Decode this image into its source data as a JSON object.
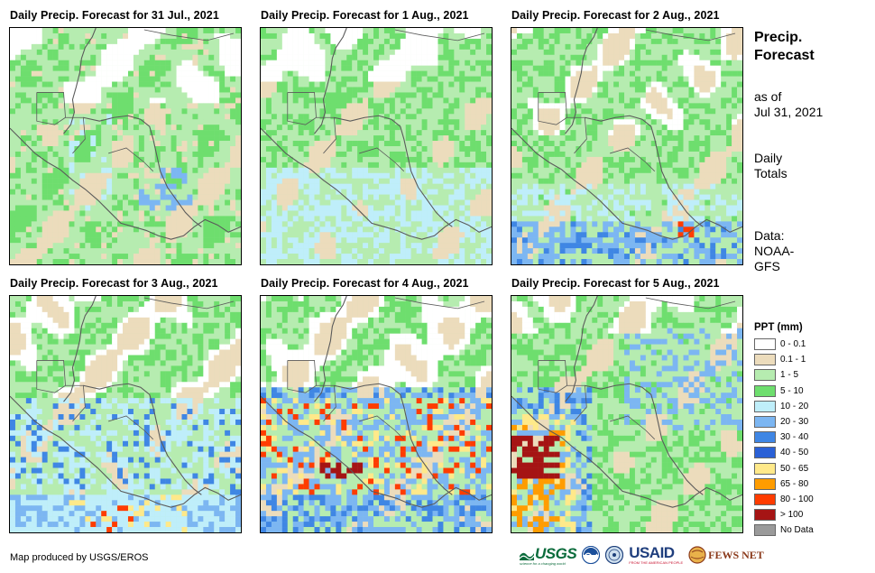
{
  "panels": [
    {
      "title": "Daily Precip. Forecast for 31 Jul., 2021"
    },
    {
      "title": "Daily Precip. Forecast for 1 Aug., 2021"
    },
    {
      "title": "Daily Precip. Forecast for 2 Aug., 2021"
    },
    {
      "title": "Daily Precip. Forecast for 3 Aug., 2021"
    },
    {
      "title": "Daily Precip. Forecast for 4 Aug., 2021"
    },
    {
      "title": "Daily Precip. Forecast for 5 Aug., 2021"
    }
  ],
  "side": {
    "title_line1": "Precip.",
    "title_line2": "Forecast",
    "asof_line1": "as of",
    "asof_line2": "Jul 31, 2021",
    "daily_line1": "Daily",
    "daily_line2": "Totals",
    "source_line1": "Data:",
    "source_line2": "NOAA-",
    "source_line3": "GFS"
  },
  "legend": {
    "title": "PPT (mm)",
    "items": [
      {
        "label": "0 - 0.1",
        "color": "#ffffff"
      },
      {
        "label": "0.1 - 1",
        "color": "#ecdcbc"
      },
      {
        "label": "1 - 5",
        "color": "#b6ecb0"
      },
      {
        "label": "5 - 10",
        "color": "#6ede6e"
      },
      {
        "label": "10 - 20",
        "color": "#bfeefa"
      },
      {
        "label": "20 - 30",
        "color": "#7cb6f2"
      },
      {
        "label": "30 - 40",
        "color": "#3f86e4"
      },
      {
        "label": "40 - 50",
        "color": "#2a60d6"
      },
      {
        "label": "50 - 65",
        "color": "#ffe98a"
      },
      {
        "label": "65 - 80",
        "color": "#ff9c00"
      },
      {
        "label": "80 - 100",
        "color": "#ff3c00"
      },
      {
        "label": "> 100",
        "color": "#a51414"
      },
      {
        "label": "No Data",
        "color": "#9a9a9a"
      }
    ]
  },
  "credit": "Map produced by USGS/EROS",
  "logos": {
    "usgs": "USGS",
    "usgs_tagline": "science for a changing world",
    "usaid": "USAID",
    "usaid_tagline": "FROM THE AMERICAN PEOPLE",
    "fewsnet": "FEWS NET"
  }
}
